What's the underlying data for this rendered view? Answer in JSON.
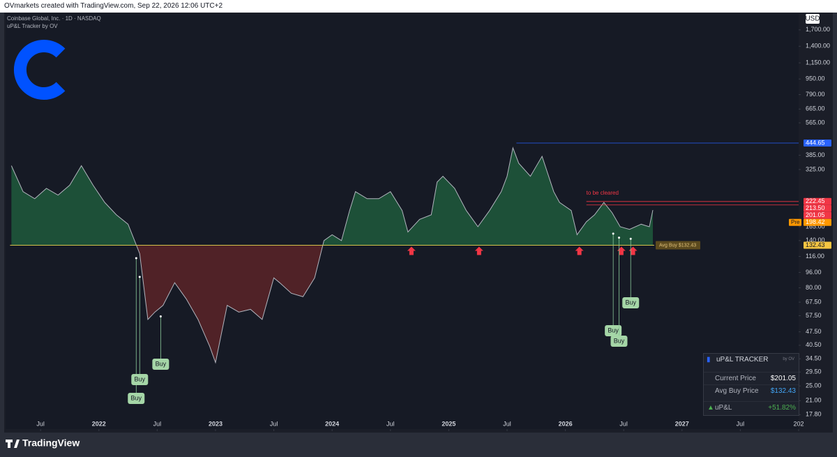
{
  "header": "OVmarkets created with TradingView.com, Sep 22, 2026 12:06 UTC+2",
  "footer": "TradingView",
  "chart_data": {
    "type": "line",
    "title": "Coinbase Global, Inc. · 1D · NASDAQ",
    "subtitle": "uP&L Tracker by OV",
    "currency": "USD",
    "log_scale": true,
    "x": [
      2021.25,
      2021.35,
      2021.45,
      2021.55,
      2021.65,
      2021.75,
      2021.85,
      2021.95,
      2022.05,
      2022.15,
      2022.25,
      2022.35,
      2022.42,
      2022.48,
      2022.55,
      2022.65,
      2022.75,
      2022.85,
      2022.95,
      2023.0,
      2023.1,
      2023.2,
      2023.3,
      2023.4,
      2023.5,
      2023.55,
      2023.65,
      2023.75,
      2023.85,
      2023.93,
      2024.0,
      2024.08,
      2024.15,
      2024.2,
      2024.3,
      2024.4,
      2024.5,
      2024.6,
      2024.65,
      2024.75,
      2024.85,
      2024.9,
      2024.95,
      2025.05,
      2025.15,
      2025.25,
      2025.35,
      2025.45,
      2025.5,
      2025.55,
      2025.6,
      2025.7,
      2025.8,
      2025.9,
      2025.95,
      2026.05,
      2026.1,
      2026.18,
      2026.25,
      2026.33,
      2026.4,
      2026.47,
      2026.55,
      2026.65,
      2026.72,
      2026.75
    ],
    "series": [
      {
        "name": "COIN",
        "color": "#b2b5be",
        "values": [
          340,
          250,
          230,
          260,
          240,
          270,
          340,
          270,
          220,
          190,
          170,
          120,
          55,
          60,
          65,
          85,
          70,
          55,
          40,
          33,
          65,
          60,
          62,
          55,
          90,
          85,
          75,
          72,
          90,
          140,
          150,
          140,
          200,
          250,
          230,
          230,
          250,
          200,
          155,
          180,
          190,
          280,
          300,
          260,
          200,
          165,
          200,
          250,
          300,
          420,
          350,
          300,
          380,
          250,
          220,
          200,
          150,
          175,
          190,
          220,
          195,
          165,
          160,
          170,
          165,
          201
        ]
      }
    ],
    "xlim": [
      2021.2,
      2028.0
    ],
    "xticks": [
      {
        "value": 2021.5,
        "label": "Jul"
      },
      2022,
      {
        "value": 2022.5,
        "label": "Jul"
      },
      2023,
      {
        "value": 2023.5,
        "label": "Jul"
      },
      2024,
      {
        "value": 2024.5,
        "label": "Jul"
      },
      2025,
      {
        "value": 2025.5,
        "label": "Jul"
      },
      2026,
      {
        "value": 2026.5,
        "label": "Jul"
      },
      2027,
      {
        "value": 2027.5,
        "label": "Jul"
      },
      {
        "value": 2028,
        "label": "202"
      }
    ],
    "ylim": [
      15,
      1740
    ],
    "yticks": [
      {
        "value": 1700,
        "label": "1,700.00"
      },
      {
        "value": 1400,
        "label": "1,400.00"
      },
      {
        "value": 1150,
        "label": "1,150.00"
      },
      {
        "value": 950,
        "label": "950.00"
      },
      {
        "value": 790,
        "label": "790.00"
      },
      {
        "value": 665,
        "label": "665.00"
      },
      {
        "value": 565,
        "label": "565.00"
      },
      {
        "value": 385,
        "label": "385.00"
      },
      {
        "value": 325,
        "label": "325.00"
      },
      {
        "value": 165,
        "label": "165.00"
      },
      {
        "value": 140,
        "label": "140.00"
      },
      {
        "value": 116,
        "label": "116.00"
      },
      {
        "value": 96,
        "label": "96.00"
      },
      {
        "value": 80,
        "label": "80.00"
      },
      {
        "value": 67.5,
        "label": "67.50"
      },
      {
        "value": 57.5,
        "label": "57.50"
      },
      {
        "value": 47.5,
        "label": "47.50"
      },
      {
        "value": 40.5,
        "label": "40.50"
      },
      {
        "value": 34.5,
        "label": "34.50"
      },
      {
        "value": 29.5,
        "label": "29.50"
      },
      {
        "value": 25,
        "label": "25.00"
      },
      {
        "value": 21,
        "label": "21.00"
      },
      {
        "value": 17.8,
        "label": "17.80"
      }
    ],
    "avg_buy": 132.43,
    "avg_label": "Avg Buy  $132.43",
    "above_color": "#1f5a3c",
    "below_color": "#5a2428",
    "price_tags": [
      {
        "value": 444.65,
        "color": "#2962ff",
        "from": 2025.58
      },
      {
        "value": 222.45,
        "color": "#f23645",
        "from": 2026.18
      },
      {
        "value": 213.5,
        "label": "213.50",
        "color": "#f23645",
        "from": 2026.18
      },
      {
        "value": 201.05,
        "color": "#f23645"
      },
      {
        "value": 198.42,
        "color": "#ff9800",
        "prefix": "Pre"
      },
      {
        "value": 132.43,
        "color": "#f5c542"
      }
    ],
    "annotation": {
      "text": "to be cleared",
      "x": 2026.18,
      "y": 245
    },
    "support_tests": [
      2024.68,
      2025.26,
      2026.12,
      2026.48,
      2026.58
    ],
    "buys": [
      {
        "label": "Buy",
        "x": 2022.32,
        "price": 113.7
      },
      {
        "label": "Buy",
        "x": 2022.35,
        "price": 91
      },
      {
        "label": "Buy",
        "x": 2022.53,
        "price": 57
      },
      {
        "label": "Buy",
        "x": 2026.41,
        "price": 152
      },
      {
        "label": "Buy",
        "x": 2026.46,
        "price": 145
      },
      {
        "label": "Buy",
        "x": 2026.56,
        "price": 143
      }
    ]
  },
  "tracker": {
    "title": "uP&L TRACKER",
    "by": "by OV",
    "rows": [
      [
        "Current Price",
        "$201.05"
      ],
      [
        "Avg Buy Price",
        "$132.43"
      ],
      [
        "uP&L",
        "+51.82%"
      ]
    ]
  }
}
